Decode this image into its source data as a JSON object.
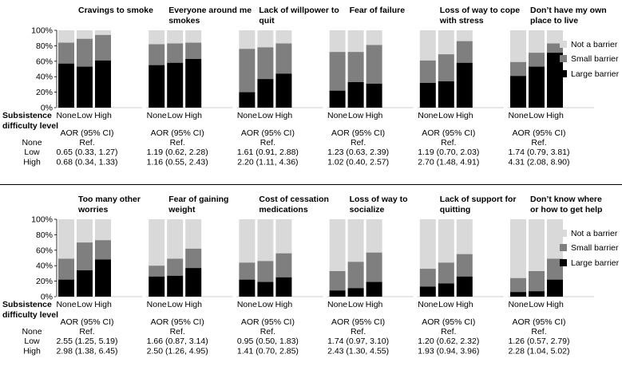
{
  "chart_data": {
    "type": "stacked-bar",
    "category_labels": [
      "None",
      "Low",
      "High"
    ],
    "row_header": "Subsistence difficulty level",
    "aor_header": "AOR (95% CI)",
    "aor_row_labels": [
      "None",
      "Low",
      "High"
    ],
    "y_ticks": [
      "0%",
      "20%",
      "40%",
      "60%",
      "80%",
      "100%"
    ],
    "ylim": [
      0,
      100
    ],
    "legend": [
      "Not a barrier",
      "Small barrier",
      "Large barrier"
    ],
    "colors": {
      "not": "#d9d9d9",
      "small": "#7f7f7f",
      "large": "#000000"
    },
    "panels": [
      {
        "panels": [
          {
            "title": [
              "Cravings to smoke"
            ],
            "large": [
              57,
              53,
              61
            ],
            "cumulative": [
              84,
              89,
              94
            ],
            "aor": [
              "Ref.",
              "0.65 (0.33, 1.27)",
              "0.68 (0.34, 1.33)"
            ]
          },
          {
            "title": [
              "Everyone around me",
              "smokes"
            ],
            "large": [
              55,
              58,
              63
            ],
            "cumulative": [
              82,
              83,
              84
            ],
            "aor": [
              "Ref.",
              "1.19 (0.62, 2.28)",
              "1.16 (0.55, 2.43)"
            ]
          },
          {
            "title": [
              "Lack of willpower to",
              "quit"
            ],
            "large": [
              20,
              37,
              44
            ],
            "cumulative": [
              76,
              78,
              83
            ],
            "aor": [
              "Ref.",
              "1.61 (0.91, 2.88)",
              "2.20 (1.11, 4.36)"
            ]
          },
          {
            "title": [
              "Fear of failure"
            ],
            "large": [
              22,
              33,
              31
            ],
            "cumulative": [
              72,
              72,
              81
            ],
            "aor": [
              "Ref.",
              "1.23 (0.63, 2.39)",
              "1.02 (0.40, 2.57)"
            ]
          },
          {
            "title": [
              "Loss of way to cope",
              "with stress"
            ],
            "large": [
              32,
              34,
              58
            ],
            "cumulative": [
              61,
              69,
              86
            ],
            "aor": [
              "Ref.",
              "1.19 (0.70, 2.03)",
              "2.70 (1.48, 4.91)"
            ]
          },
          {
            "title": [
              "Don’t have my own",
              "place to live"
            ],
            "large": [
              41,
              53,
              71
            ],
            "cumulative": [
              59,
              71,
              83
            ],
            "aor": [
              "Ref.",
              "1.74 (0.79, 3.81)",
              "4.31 (2.08, 8.90)"
            ]
          }
        ]
      },
      {
        "panels": [
          {
            "title": [
              "Too many other",
              "worries"
            ],
            "large": [
              22,
              34,
              48
            ],
            "cumulative": [
              49,
              70,
              73
            ],
            "aor": [
              "Ref.",
              "2.55 (1.25, 5.19)",
              "2.98 (1.38, 6.45)"
            ]
          },
          {
            "title": [
              "Fear of gaining",
              "weight"
            ],
            "large": [
              26,
              27,
              37
            ],
            "cumulative": [
              40,
              49,
              62
            ],
            "aor": [
              "Ref.",
              "1.66 (0.87, 3.14)",
              "2.50 (1.26, 4.95)"
            ]
          },
          {
            "title": [
              "Cost of cessation",
              "medications"
            ],
            "large": [
              22,
              19,
              25
            ],
            "cumulative": [
              44,
              46,
              56
            ],
            "aor": [
              "Ref.",
              "0.95 (0.50, 1.83)",
              "1.41 (0.70, 2.85)"
            ]
          },
          {
            "title": [
              "Loss of way to",
              "socialize"
            ],
            "large": [
              8,
              11,
              19
            ],
            "cumulative": [
              33,
              45,
              57
            ],
            "aor": [
              "Ref.",
              "1.74 (0.97, 3.10)",
              "2.43 (1.30, 4.55)"
            ]
          },
          {
            "title": [
              "Lack of support for",
              "quitting"
            ],
            "large": [
              13,
              17,
              26
            ],
            "cumulative": [
              36,
              44,
              55
            ],
            "aor": [
              "Ref.",
              "1.20 (0.62, 2.32)",
              "1.93 (0.94, 3.96)"
            ]
          },
          {
            "title": [
              "Don’t know where",
              "or how to get help"
            ],
            "large": [
              6,
              7,
              22
            ],
            "cumulative": [
              24,
              33,
              49
            ],
            "aor": [
              "Ref.",
              "1.26 (0.57, 2.79)",
              "2.28 (1.04, 5.02)"
            ]
          }
        ]
      }
    ]
  }
}
